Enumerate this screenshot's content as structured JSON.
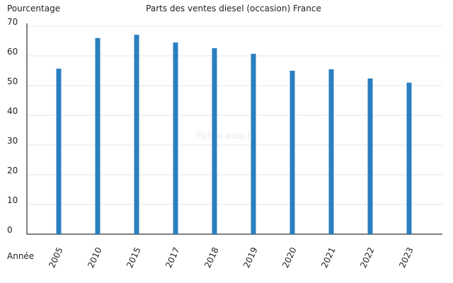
{
  "chart_data": {
    "type": "bar",
    "title": "Parts des ventes diesel (occasion) France",
    "y_label": "Pourcentage",
    "x_label": "Année",
    "watermark": "Fiches-auto.fr",
    "categories": [
      "2005",
      "2010",
      "2015",
      "2017",
      "2018",
      "2019",
      "2020",
      "2021",
      "2022",
      "2023"
    ],
    "values": [
      55.7,
      66,
      67.1,
      64.5,
      62.6,
      60.7,
      55,
      55.5,
      52.4,
      51
    ],
    "color": "#2a7fbf",
    "ylim": [
      0,
      70
    ],
    "yticks": [
      0,
      10,
      20,
      30,
      40,
      50,
      60,
      70
    ],
    "grid": true
  }
}
